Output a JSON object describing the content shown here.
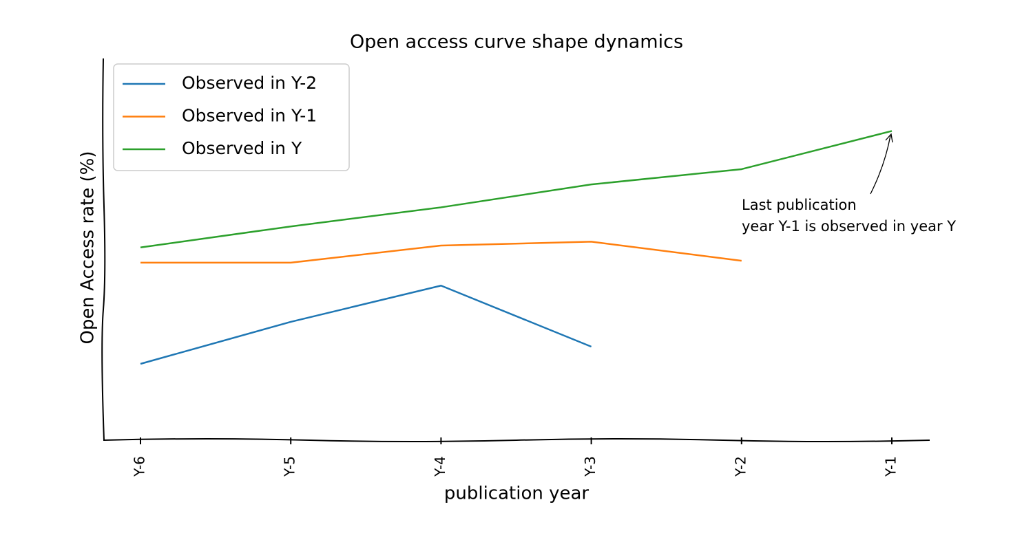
{
  "chart_data": {
    "type": "line",
    "title": "Open access curve shape dynamics",
    "x_label": "publication year",
    "y_label": "Open Access rate (%)",
    "categories": [
      "Y-6",
      "Y-5",
      "Y-4",
      "Y-3",
      "Y-2",
      "Y-1"
    ],
    "series": [
      {
        "name": "Observed in Y-2",
        "color": "#1f77b4",
        "values": [
          20,
          31,
          40.5,
          24.5,
          null,
          null
        ]
      },
      {
        "name": "Observed in Y-1",
        "color": "#ff7f0e",
        "values": [
          46.5,
          46.5,
          51,
          52,
          47,
          null
        ]
      },
      {
        "name": "Observed in Y",
        "color": "#2ca02c",
        "values": [
          50.5,
          56,
          61,
          67,
          71,
          81
        ]
      }
    ],
    "ylim": [
      0,
      100
    ],
    "grid": false,
    "legend": "upper left",
    "annotation": {
      "lines": [
        "Last publication",
        "year Y-1 is observed in year Y"
      ]
    }
  }
}
